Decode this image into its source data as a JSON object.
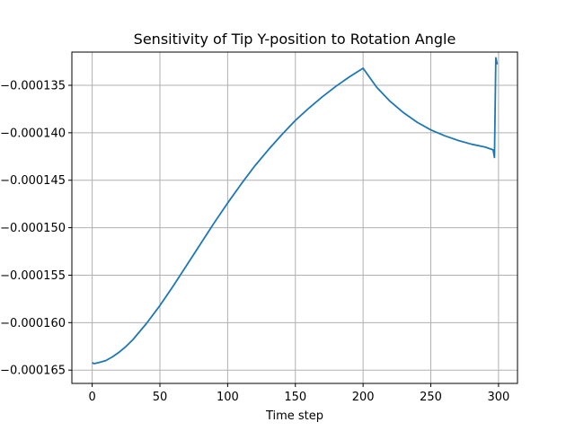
{
  "chart_data": {
    "type": "line",
    "title": "Sensitivity of Tip Y-position to Rotation Angle",
    "xlabel": "Time step",
    "ylabel": "",
    "xlim": [
      -15,
      314
    ],
    "ylim": [
      -0.0001664,
      -0.0001315
    ],
    "x_ticks": [
      0,
      50,
      100,
      150,
      200,
      250,
      300
    ],
    "x_tick_labels": [
      "0",
      "50",
      "100",
      "150",
      "200",
      "250",
      "300"
    ],
    "y_ticks": [
      -0.000165,
      -0.00016,
      -0.000155,
      -0.00015,
      -0.000145,
      -0.00014,
      -0.000135
    ],
    "y_tick_labels": [
      "−0.000165",
      "−0.000160",
      "−0.000155",
      "−0.000150",
      "−0.000145",
      "−0.000140",
      "−0.000135"
    ],
    "grid": true,
    "series": [
      {
        "color": "#1f77b4",
        "x": [
          0,
          1,
          2,
          5,
          10,
          15,
          20,
          25,
          30,
          40,
          50,
          60,
          70,
          80,
          90,
          100,
          110,
          120,
          130,
          140,
          150,
          160,
          170,
          180,
          190,
          200,
          210,
          220,
          230,
          240,
          250,
          260,
          270,
          280,
          290,
          296,
          297,
          298,
          299
        ],
        "y": [
          -0.0001642,
          -0.0001643,
          -0.0001643,
          -0.0001642,
          -0.000164,
          -0.0001636,
          -0.0001631,
          -0.0001625,
          -0.0001618,
          -0.0001601,
          -0.0001582,
          -0.0001561,
          -0.0001539,
          -0.0001517,
          -0.0001495,
          -0.0001474,
          -0.0001454,
          -0.0001435,
          -0.0001418,
          -0.0001402,
          -0.0001387,
          -0.0001374,
          -0.0001362,
          -0.0001351,
          -0.0001341,
          -0.0001332,
          -0.0001352,
          -0.0001367,
          -0.0001379,
          -0.0001389,
          -0.0001397,
          -0.0001403,
          -0.0001408,
          -0.0001412,
          -0.0001415,
          -0.0001418,
          -0.0001426,
          -0.0001321,
          -0.0001328
        ]
      }
    ]
  }
}
